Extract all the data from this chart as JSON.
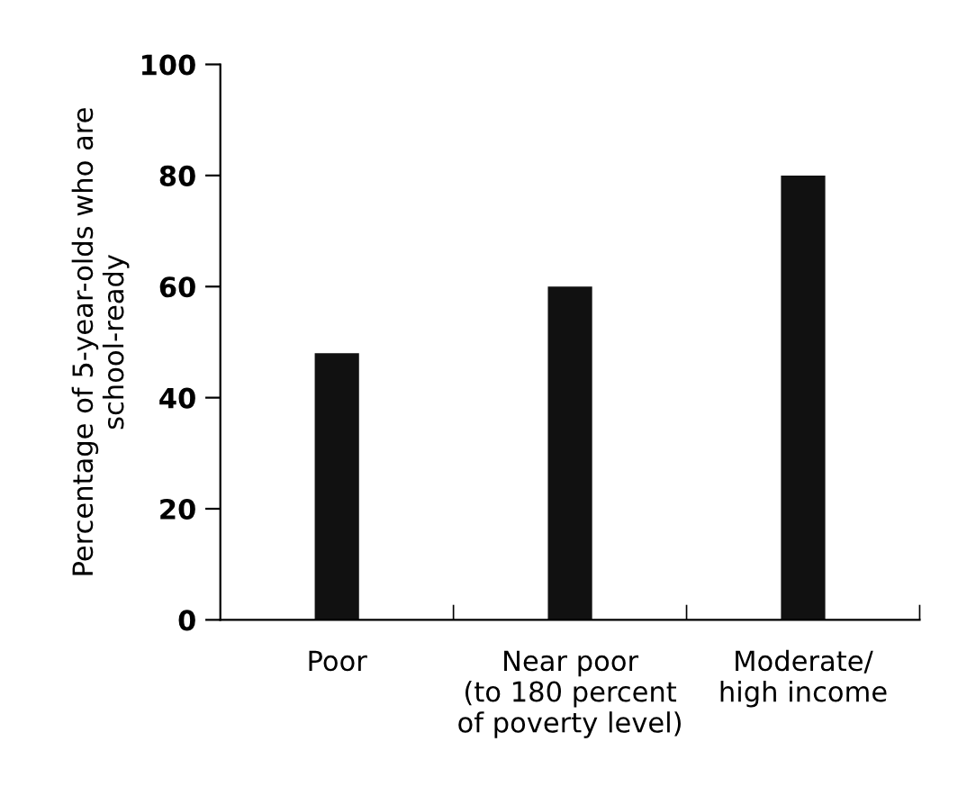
{
  "chart_data": {
    "type": "bar",
    "ylabel": "Percentage of 5-year-olds who are\nschool-ready",
    "categories": [
      "Poor",
      "Near poor\n(to 180 percent\nof poverty level)",
      "Moderate/\nhigh income"
    ],
    "values": [
      48,
      60,
      80
    ],
    "color": "#111111",
    "ylim": [
      0,
      100
    ],
    "yticks": [
      0,
      20,
      40,
      60,
      80,
      100
    ],
    "grid": false
  }
}
